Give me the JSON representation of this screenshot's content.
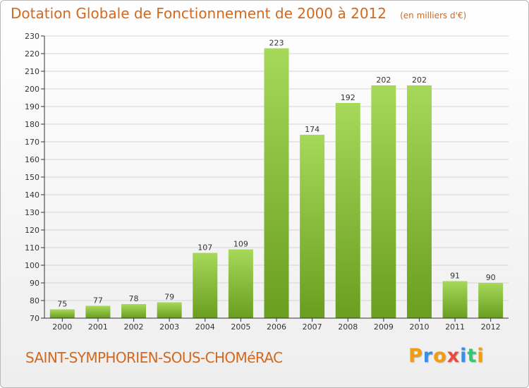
{
  "title": "Dotation Globale de Fonctionnement de 2000 à 2012",
  "unit_note": "(en milliers d'€)",
  "commune": "SAINT-SYMPHORIEN-SOUS-CHOMéRAC",
  "logo": {
    "letters": [
      "P",
      "r",
      "o",
      "x",
      "i",
      "t",
      "i"
    ],
    "colors": [
      "#f39c12",
      "#3a8ee6",
      "#f39c12",
      "#e74c3c",
      "#3a8ee6",
      "#2ecc71",
      "#f39c12"
    ]
  },
  "colors": {
    "bar_top": "#a6d85a",
    "bar_bottom": "#6a9e1f",
    "title": "#d2691e",
    "grid": "#d4d4d4",
    "axis": "#333333"
  },
  "chart_data": {
    "type": "bar",
    "title": "Dotation Globale de Fonctionnement de 2000 à 2012",
    "categories": [
      "2000",
      "2001",
      "2002",
      "2003",
      "2004",
      "2005",
      "2006",
      "2007",
      "2008",
      "2009",
      "2010",
      "2011",
      "2012"
    ],
    "values": [
      75,
      77,
      78,
      79,
      107,
      109,
      223,
      174,
      192,
      202,
      202,
      91,
      90
    ],
    "xlabel": "",
    "ylabel": "",
    "ylim": [
      70,
      230
    ],
    "ytick_step": 10,
    "grid": true,
    "data_labels": true
  }
}
